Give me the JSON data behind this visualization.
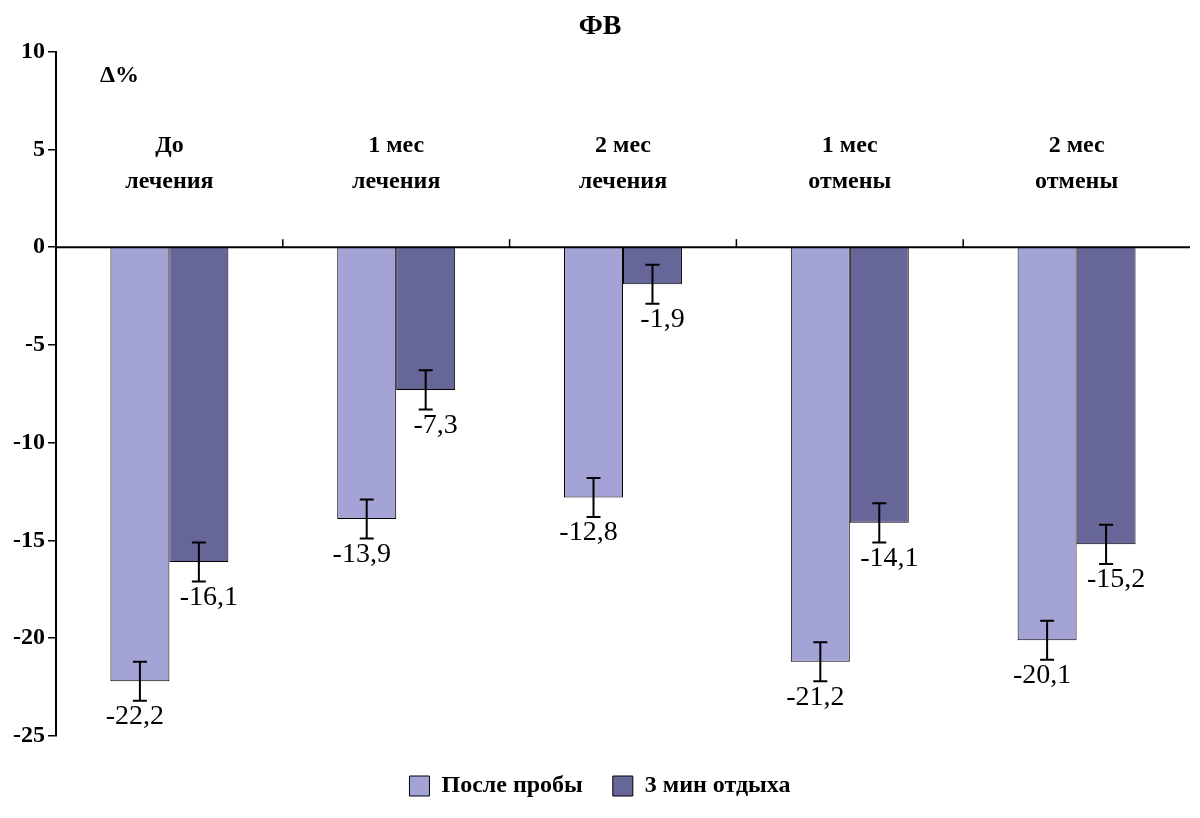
{
  "chart_data": {
    "type": "bar",
    "title": "ФВ",
    "ylabel": "Δ%",
    "categories": [
      "До лечения",
      "1 мес лечения",
      "2 мес лечения",
      "1 мес отмены",
      "2 мес отмены"
    ],
    "ylim": [
      -25,
      10
    ],
    "yticks": [
      -25,
      -20,
      -15,
      -10,
      -5,
      0,
      5,
      10
    ],
    "legend": "bottom",
    "series": [
      {
        "name": "После пробы",
        "color": "#a3a3d6",
        "values": [
          -22.2,
          -13.9,
          -12.8,
          -21.2,
          -20.1
        ],
        "errors": [
          1,
          1,
          1,
          1,
          1
        ],
        "value_labels": [
          "-22,2",
          "-13,9",
          "-12,8",
          "-21,2",
          "-20,1"
        ]
      },
      {
        "name": "3 мин отдыха",
        "color": "#666699",
        "values": [
          -16.1,
          -7.3,
          -1.9,
          -14.1,
          -15.2
        ],
        "errors": [
          1,
          1,
          1,
          1,
          1
        ],
        "value_labels": [
          "-16,1",
          "-7,3",
          "-1,9",
          "-14,1",
          "-15,2"
        ]
      }
    ]
  }
}
